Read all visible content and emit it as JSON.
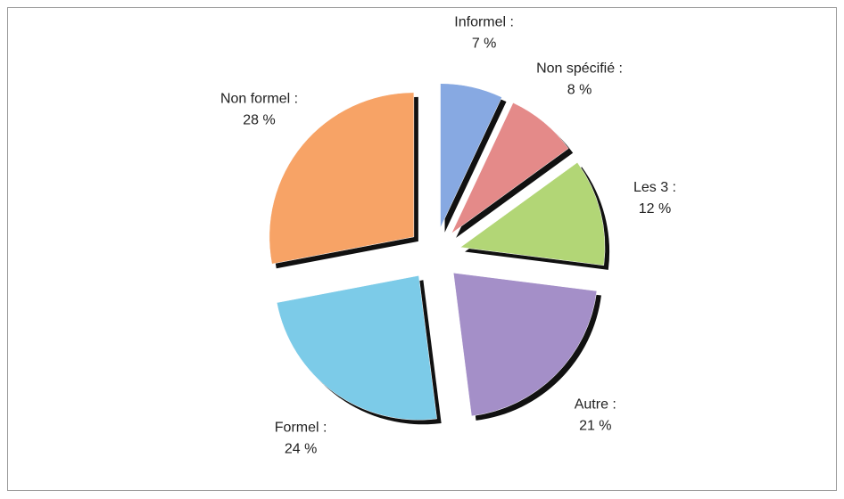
{
  "chart_data": {
    "type": "pie",
    "categories": [
      "Informel :",
      "Non spécifié :",
      "Les 3 :",
      "Autre :",
      "Formel :",
      "Non formel :"
    ],
    "values": [
      7,
      8,
      12,
      21,
      24,
      28
    ],
    "value_labels": [
      "7 %",
      "8 %",
      "12 %",
      "21 %",
      "24 %",
      "28 %"
    ],
    "colors": [
      "#87a9e2",
      "#e48a89",
      "#b2d676",
      "#a48fc8",
      "#7ccbe8",
      "#f7a366"
    ]
  }
}
